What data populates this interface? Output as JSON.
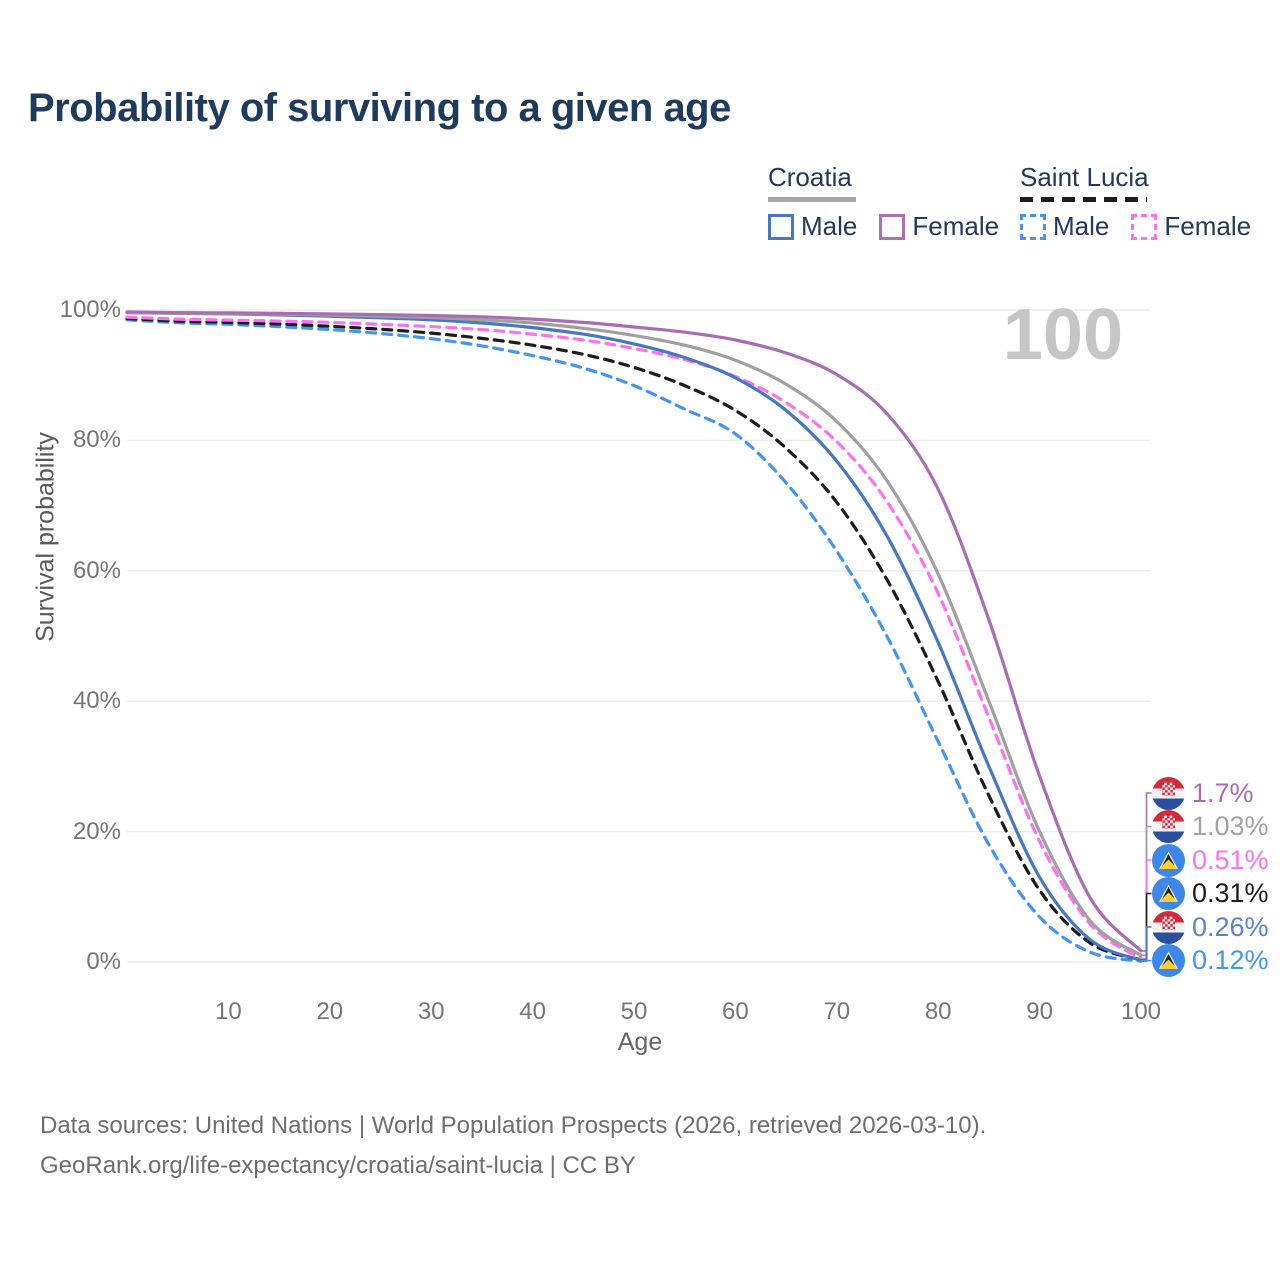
{
  "title": "Probability of surviving to a given age",
  "age_marker": "100",
  "legend": {
    "groups": [
      {
        "label": "Croatia",
        "style": "solid",
        "items": [
          {
            "label": "Male"
          },
          {
            "label": "Female"
          }
        ]
      },
      {
        "label": "Saint Lucia",
        "style": "dashed",
        "items": [
          {
            "label": "Male"
          },
          {
            "label": "Female"
          }
        ]
      }
    ]
  },
  "chart_data": {
    "type": "line",
    "title": "Probability of surviving to a given age",
    "xlabel": "Age",
    "ylabel": "Survival probability",
    "xlim": [
      0,
      100
    ],
    "ylim": [
      0,
      100
    ],
    "grid": "horizontal",
    "x_ticks": [
      10,
      20,
      30,
      40,
      50,
      60,
      70,
      80,
      90,
      100
    ],
    "y_ticks": [
      0,
      20,
      40,
      60,
      80,
      100
    ],
    "y_tick_labels": [
      "0%",
      "20%",
      "40%",
      "60%",
      "80%",
      "100%"
    ],
    "ages": [
      0,
      5,
      10,
      15,
      20,
      25,
      30,
      35,
      40,
      45,
      50,
      55,
      60,
      65,
      70,
      75,
      80,
      85,
      90,
      95,
      100
    ],
    "series": [
      {
        "name": "Saint Lucia Male",
        "country": "Saint Lucia",
        "sex": "Male",
        "color": "#4394f5",
        "dash": "dashed",
        "end_label": "0.12%",
        "values": [
          98.5,
          98.05,
          97.8,
          97.45,
          97.0,
          96.4,
          95.6,
          94.5,
          93.0,
          91.1,
          88.4,
          84.8,
          81.0,
          73.5,
          63.0,
          49.8,
          33.8,
          18.0,
          6.9,
          1.5,
          0.12
        ]
      },
      {
        "name": "Saint Lucia Both sexes",
        "country": "Saint Lucia",
        "sex": "Both",
        "color": "#1c1c1c",
        "dash": "dashed",
        "end_label": "0.31%",
        "values": [
          98.7,
          98.3,
          98.1,
          97.85,
          97.5,
          97.05,
          96.45,
          95.65,
          94.6,
          93.2,
          91.2,
          88.4,
          84.6,
          78.8,
          70.5,
          58.5,
          43.0,
          25.5,
          11.0,
          2.9,
          0.31
        ]
      },
      {
        "name": "Saint Lucia Female",
        "country": "Saint Lucia",
        "sex": "Female",
        "color": "#ff70f0",
        "dash": "dashed",
        "end_label": "0.51%",
        "values": [
          98.9,
          98.6,
          98.45,
          98.3,
          98.1,
          97.8,
          97.45,
          97.0,
          96.3,
          95.4,
          94.1,
          92.4,
          89.8,
          85.8,
          79.8,
          70.5,
          56.5,
          37.5,
          18.5,
          5.8,
          0.51
        ]
      },
      {
        "name": "Croatia Male",
        "country": "Croatia",
        "sex": "Male",
        "color": "#4577c2",
        "dash": "solid",
        "end_label": "0.26%",
        "values": [
          99.6,
          99.5,
          99.4,
          99.25,
          99.05,
          98.8,
          98.5,
          98.0,
          97.3,
          96.3,
          94.8,
          92.7,
          89.6,
          84.6,
          76.8,
          65.2,
          49.0,
          30.0,
          13.0,
          3.4,
          0.26
        ]
      },
      {
        "name": "Croatia Both sexes",
        "country": "Croatia",
        "sex": "Both",
        "color": "#a0a0a0",
        "dash": "solid",
        "end_label": "1.03%",
        "values": [
          99.6,
          99.5,
          99.45,
          99.35,
          99.2,
          99.05,
          98.85,
          98.5,
          98.0,
          97.2,
          96.1,
          94.6,
          92.3,
          88.6,
          82.9,
          73.7,
          59.5,
          40.0,
          20.0,
          6.3,
          1.03
        ]
      },
      {
        "name": "Croatia Female",
        "country": "Croatia",
        "sex": "Female",
        "color": "#a86db3",
        "dash": "solid",
        "end_label": "1.7%",
        "values": [
          99.7,
          99.6,
          99.55,
          99.5,
          99.4,
          99.3,
          99.15,
          98.95,
          98.6,
          98.1,
          97.4,
          96.6,
          95.4,
          93.4,
          90.1,
          84.0,
          72.5,
          52.5,
          28.5,
          9.8,
          1.7
        ]
      }
    ]
  },
  "end_labels": [
    {
      "value": "1.7%",
      "color": "#a86db3",
      "flag": "croatia-flag",
      "flag_href": "#flag-croatia",
      "series": 5
    },
    {
      "value": "1.03%",
      "color": "#a3a3a3",
      "flag": "croatia-flag",
      "flag_href": "#flag-croatia",
      "series": 4
    },
    {
      "value": "0.51%",
      "color": "#ff70f0",
      "flag": "saint-lucia-flag",
      "flag_href": "#flag-lucia",
      "series": 2
    },
    {
      "value": "0.31%",
      "color": "#1c1c1c",
      "flag": "saint-lucia-flag",
      "flag_href": "#flag-lucia",
      "series": 1
    },
    {
      "value": "0.26%",
      "color": "#5b84c9",
      "flag": "croatia-flag",
      "flag_href": "#flag-croatia",
      "series": 3
    },
    {
      "value": "0.12%",
      "color": "#4394f5",
      "flag": "saint-lucia-flag",
      "flag_href": "#flag-lucia",
      "series": 0
    }
  ],
  "footer": {
    "line1": "Data sources: United Nations | World Population Prospects (2026, retrieved 2026-03-10).",
    "line2": "GeoRank.org/life-expectancy/croatia/saint-lucia | CC BY"
  }
}
